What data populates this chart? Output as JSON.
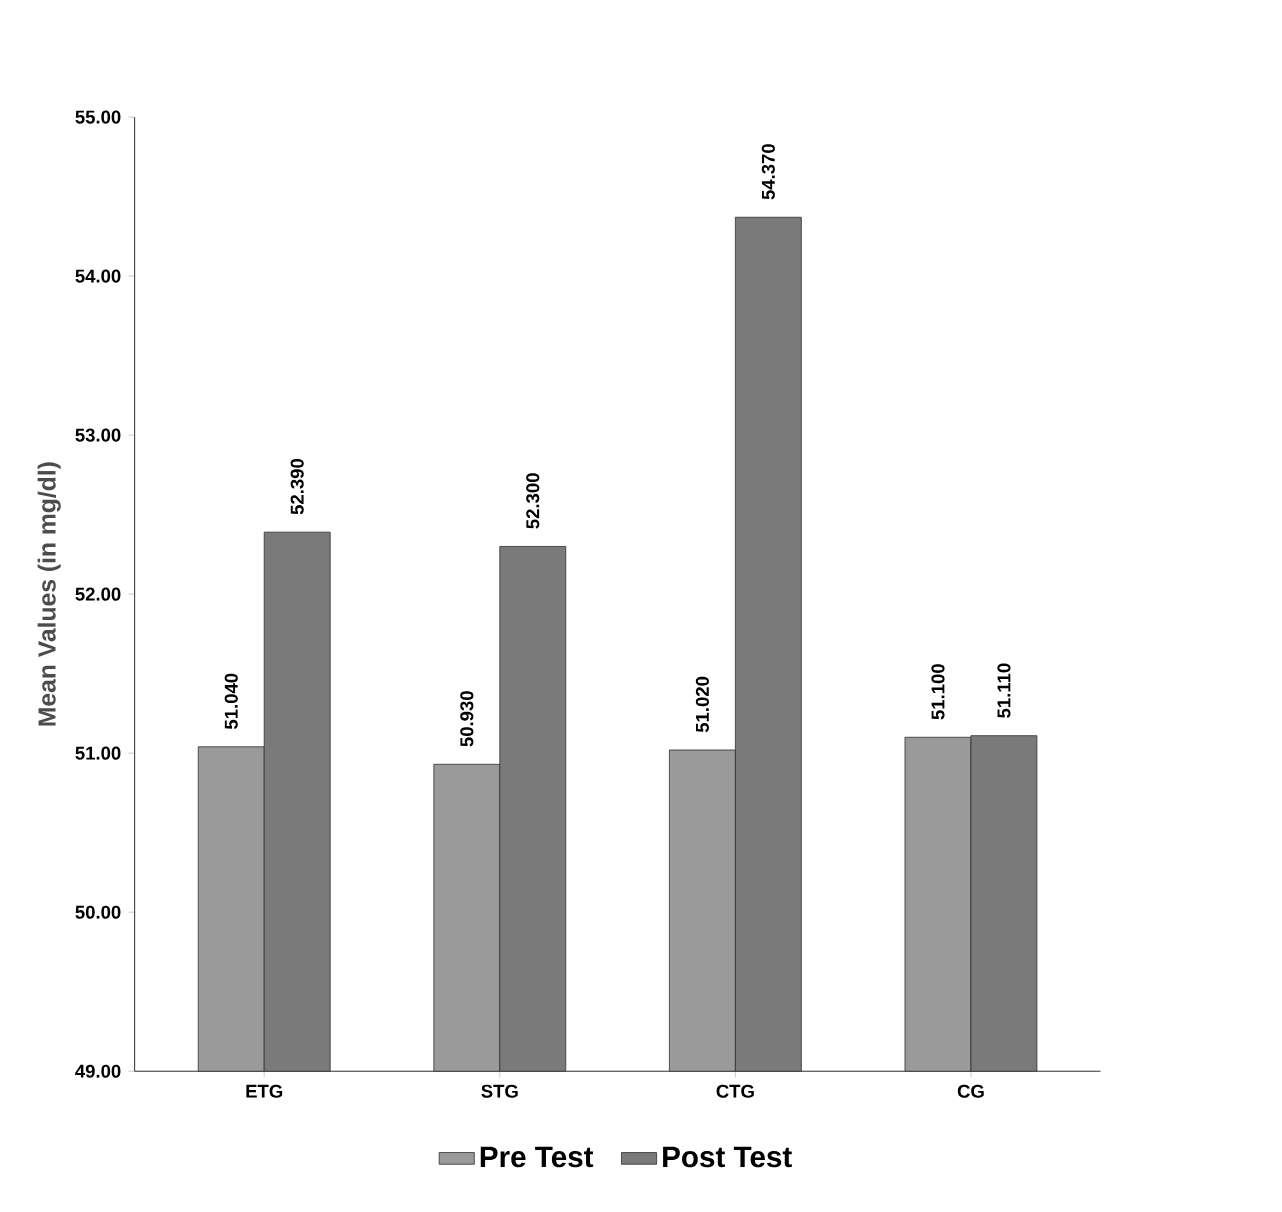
{
  "chart_data": {
    "type": "bar",
    "ylabel": "Mean Values (in mg/dl)",
    "categories": [
      "ETG",
      "STG",
      "CTG",
      "CG"
    ],
    "series": [
      {
        "name": "Pre Test",
        "color": "#9a9a9a",
        "values": [
          51.04,
          50.93,
          51.02,
          51.1
        ],
        "value_labels": [
          "51.040",
          "50.930",
          "51.020",
          "51.100"
        ]
      },
      {
        "name": "Post Test",
        "color": "#7a7a7a",
        "values": [
          52.39,
          52.3,
          54.37,
          51.11
        ],
        "value_labels": [
          "52.390",
          "52.300",
          "54.370",
          "51.110"
        ]
      }
    ],
    "ylim": [
      49,
      55
    ],
    "yticks": [
      {
        "value": 49,
        "label": "49.00"
      },
      {
        "value": 50,
        "label": "50.00"
      },
      {
        "value": 51,
        "label": "51.00"
      },
      {
        "value": 52,
        "label": "52.00"
      },
      {
        "value": 53,
        "label": "53.00"
      },
      {
        "value": 54,
        "label": "54.00"
      },
      {
        "value": 55,
        "label": "55.00"
      }
    ],
    "grid": false,
    "legend": "bottom"
  }
}
